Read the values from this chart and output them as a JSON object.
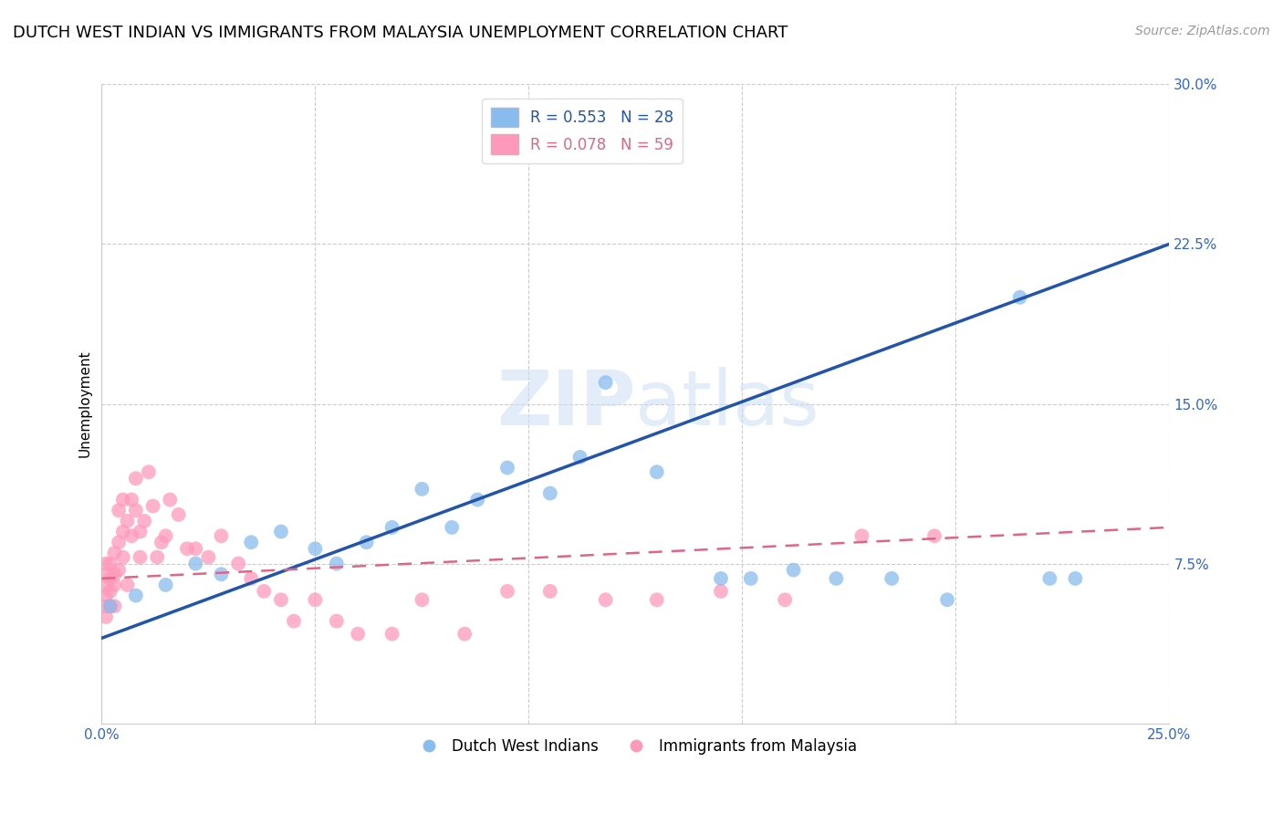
{
  "title": "DUTCH WEST INDIAN VS IMMIGRANTS FROM MALAYSIA UNEMPLOYMENT CORRELATION CHART",
  "source": "Source: ZipAtlas.com",
  "ylabel": "Unemployment",
  "xlim": [
    0.0,
    0.25
  ],
  "ylim": [
    0.0,
    0.3
  ],
  "xticks": [
    0.0,
    0.05,
    0.1,
    0.15,
    0.2,
    0.25
  ],
  "xticklabels": [
    "0.0%",
    "",
    "",
    "",
    "",
    "25.0%"
  ],
  "yticks": [
    0.0,
    0.075,
    0.15,
    0.225,
    0.3
  ],
  "yticklabels": [
    "",
    "7.5%",
    "15.0%",
    "22.5%",
    "30.0%"
  ],
  "legend1_label": "R = 0.553   N = 28",
  "legend2_label": "R = 0.078   N = 59",
  "legend_bottom1": "Dutch West Indians",
  "legend_bottom2": "Immigrants from Malaysia",
  "watermark_zip": "ZIP",
  "watermark_atlas": "atlas",
  "blue_color": "#88BBEE",
  "pink_color": "#FF99BB",
  "blue_line_color": "#2255AA",
  "pink_line_color": "#DD6688",
  "blue_scatter_x": [
    0.002,
    0.008,
    0.015,
    0.022,
    0.028,
    0.035,
    0.042,
    0.05,
    0.055,
    0.062,
    0.068,
    0.075,
    0.082,
    0.088,
    0.095,
    0.105,
    0.112,
    0.118,
    0.13,
    0.145,
    0.152,
    0.162,
    0.172,
    0.185,
    0.198,
    0.215,
    0.222,
    0.228
  ],
  "blue_scatter_y": [
    0.055,
    0.06,
    0.065,
    0.075,
    0.07,
    0.085,
    0.09,
    0.082,
    0.075,
    0.085,
    0.092,
    0.11,
    0.092,
    0.105,
    0.12,
    0.108,
    0.125,
    0.16,
    0.118,
    0.068,
    0.068,
    0.072,
    0.068,
    0.068,
    0.058,
    0.2,
    0.068,
    0.068
  ],
  "pink_scatter_x": [
    0.001,
    0.001,
    0.001,
    0.001,
    0.001,
    0.001,
    0.002,
    0.002,
    0.002,
    0.002,
    0.003,
    0.003,
    0.003,
    0.003,
    0.004,
    0.004,
    0.004,
    0.005,
    0.005,
    0.005,
    0.006,
    0.006,
    0.007,
    0.007,
    0.008,
    0.008,
    0.009,
    0.009,
    0.01,
    0.011,
    0.012,
    0.013,
    0.014,
    0.015,
    0.016,
    0.018,
    0.02,
    0.022,
    0.025,
    0.028,
    0.032,
    0.035,
    0.038,
    0.042,
    0.045,
    0.05,
    0.055,
    0.06,
    0.068,
    0.075,
    0.085,
    0.095,
    0.105,
    0.118,
    0.13,
    0.145,
    0.16,
    0.178,
    0.195
  ],
  "pink_scatter_y": [
    0.055,
    0.06,
    0.065,
    0.07,
    0.075,
    0.05,
    0.055,
    0.062,
    0.068,
    0.075,
    0.08,
    0.065,
    0.055,
    0.07,
    0.072,
    0.085,
    0.1,
    0.078,
    0.09,
    0.105,
    0.065,
    0.095,
    0.105,
    0.088,
    0.115,
    0.1,
    0.09,
    0.078,
    0.095,
    0.118,
    0.102,
    0.078,
    0.085,
    0.088,
    0.105,
    0.098,
    0.082,
    0.082,
    0.078,
    0.088,
    0.075,
    0.068,
    0.062,
    0.058,
    0.048,
    0.058,
    0.048,
    0.042,
    0.042,
    0.058,
    0.042,
    0.062,
    0.062,
    0.058,
    0.058,
    0.062,
    0.058,
    0.088,
    0.088
  ],
  "title_fontsize": 13,
  "axis_label_fontsize": 11,
  "tick_fontsize": 11,
  "tick_color": "#3366CC",
  "source_fontsize": 10
}
